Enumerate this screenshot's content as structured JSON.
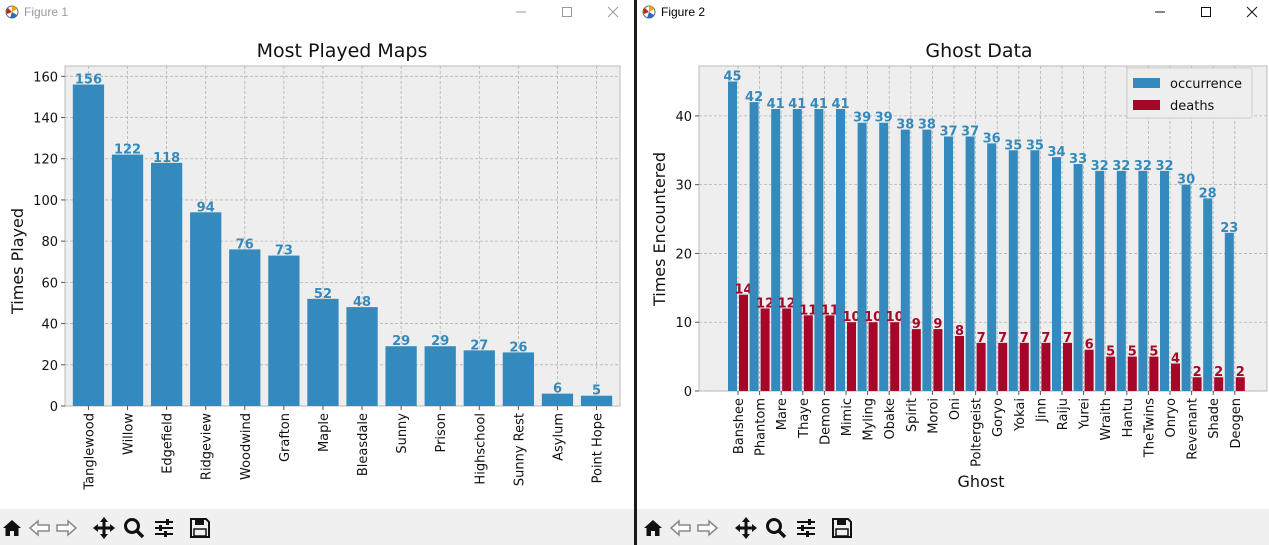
{
  "window1": {
    "title": "Figure 1",
    "chart": {
      "type": "bar",
      "title": "Most Played Maps",
      "xlabel": "",
      "ylabel": "Times Played",
      "categories": [
        "Tanglewood",
        "Willow",
        "Edgefield",
        "Ridgeview",
        "Woodwind",
        "Grafton",
        "Maple",
        "Bleasdale",
        "Sunny",
        "Prison",
        "Highschool",
        "Sunny Rest",
        "Asylum",
        "Point Hope"
      ],
      "values": [
        156,
        122,
        118,
        94,
        76,
        73,
        52,
        48,
        29,
        29,
        27,
        26,
        6,
        5
      ],
      "yticks": [
        "0",
        "20",
        "40",
        "60",
        "80",
        "100",
        "120",
        "140",
        "160"
      ],
      "ylim": [
        0,
        165
      ],
      "grid": true,
      "color": "#348ABD"
    }
  },
  "window2": {
    "title": "Figure 2",
    "chart": {
      "type": "bar",
      "title": "Ghost Data",
      "xlabel": "Ghost",
      "ylabel": "Times Encountered",
      "categories": [
        "Banshee",
        "Phantom",
        "Mare",
        "Thaye",
        "Demon",
        "Mimic",
        "Myling",
        "Obake",
        "Spirit",
        "Moroi",
        "Oni",
        "Poltergeist",
        "Goryo",
        "Yokai",
        "Jinn",
        "Raiju",
        "Yurei",
        "Wraith",
        "Hantu",
        "TheTwins",
        "Onryo",
        "Revenant",
        "Shade",
        "Deogen"
      ],
      "series": [
        {
          "name": "occurrence",
          "values": [
            45,
            42,
            41,
            41,
            41,
            41,
            39,
            39,
            38,
            38,
            37,
            37,
            36,
            35,
            35,
            34,
            33,
            32,
            32,
            32,
            32,
            30,
            28,
            23
          ],
          "color": "#348ABD"
        },
        {
          "name": "deaths",
          "values": [
            14,
            12,
            12,
            11,
            11,
            10,
            10,
            10,
            9,
            9,
            8,
            7,
            7,
            7,
            7,
            7,
            6,
            5,
            5,
            5,
            4,
            2,
            2,
            2
          ],
          "color": "#A60628"
        }
      ],
      "yticks": [
        "0",
        "10",
        "20",
        "30",
        "40"
      ],
      "ylim": [
        0,
        47.25
      ],
      "grid": true,
      "legend": "top-right"
    }
  },
  "chart_data": [
    {
      "type": "bar",
      "title": "Most Played Maps",
      "xlabel": "",
      "ylabel": "Times Played",
      "categories": [
        "Tanglewood",
        "Willow",
        "Edgefield",
        "Ridgeview",
        "Woodwind",
        "Grafton",
        "Maple",
        "Bleasdale",
        "Sunny",
        "Prison",
        "Highschool",
        "Sunny Rest",
        "Asylum",
        "Point Hope"
      ],
      "values": [
        156,
        122,
        118,
        94,
        76,
        73,
        52,
        48,
        29,
        29,
        27,
        26,
        6,
        5
      ],
      "ylim": [
        0,
        165
      ],
      "grid": true
    },
    {
      "type": "bar",
      "title": "Ghost Data",
      "xlabel": "Ghost",
      "ylabel": "Times Encountered",
      "categories": [
        "Banshee",
        "Phantom",
        "Mare",
        "Thaye",
        "Demon",
        "Mimic",
        "Myling",
        "Obake",
        "Spirit",
        "Moroi",
        "Oni",
        "Poltergeist",
        "Goryo",
        "Yokai",
        "Jinn",
        "Raiju",
        "Yurei",
        "Wraith",
        "Hantu",
        "TheTwins",
        "Onryo",
        "Revenant",
        "Shade",
        "Deogen"
      ],
      "series": [
        {
          "name": "occurrence",
          "values": [
            45,
            42,
            41,
            41,
            41,
            41,
            39,
            39,
            38,
            38,
            37,
            37,
            36,
            35,
            35,
            34,
            33,
            32,
            32,
            32,
            32,
            30,
            28,
            23
          ]
        },
        {
          "name": "deaths",
          "values": [
            14,
            12,
            12,
            11,
            11,
            10,
            10,
            10,
            9,
            9,
            8,
            7,
            7,
            7,
            7,
            7,
            6,
            5,
            5,
            5,
            4,
            2,
            2,
            2
          ]
        }
      ],
      "ylim": [
        0,
        47.25
      ],
      "grid": true,
      "legend": "top-right"
    }
  ],
  "toolbar_icons": [
    "home-icon",
    "back-icon",
    "forward-icon",
    "pan-icon",
    "zoom-icon",
    "configure-subplots-icon",
    "save-icon"
  ]
}
